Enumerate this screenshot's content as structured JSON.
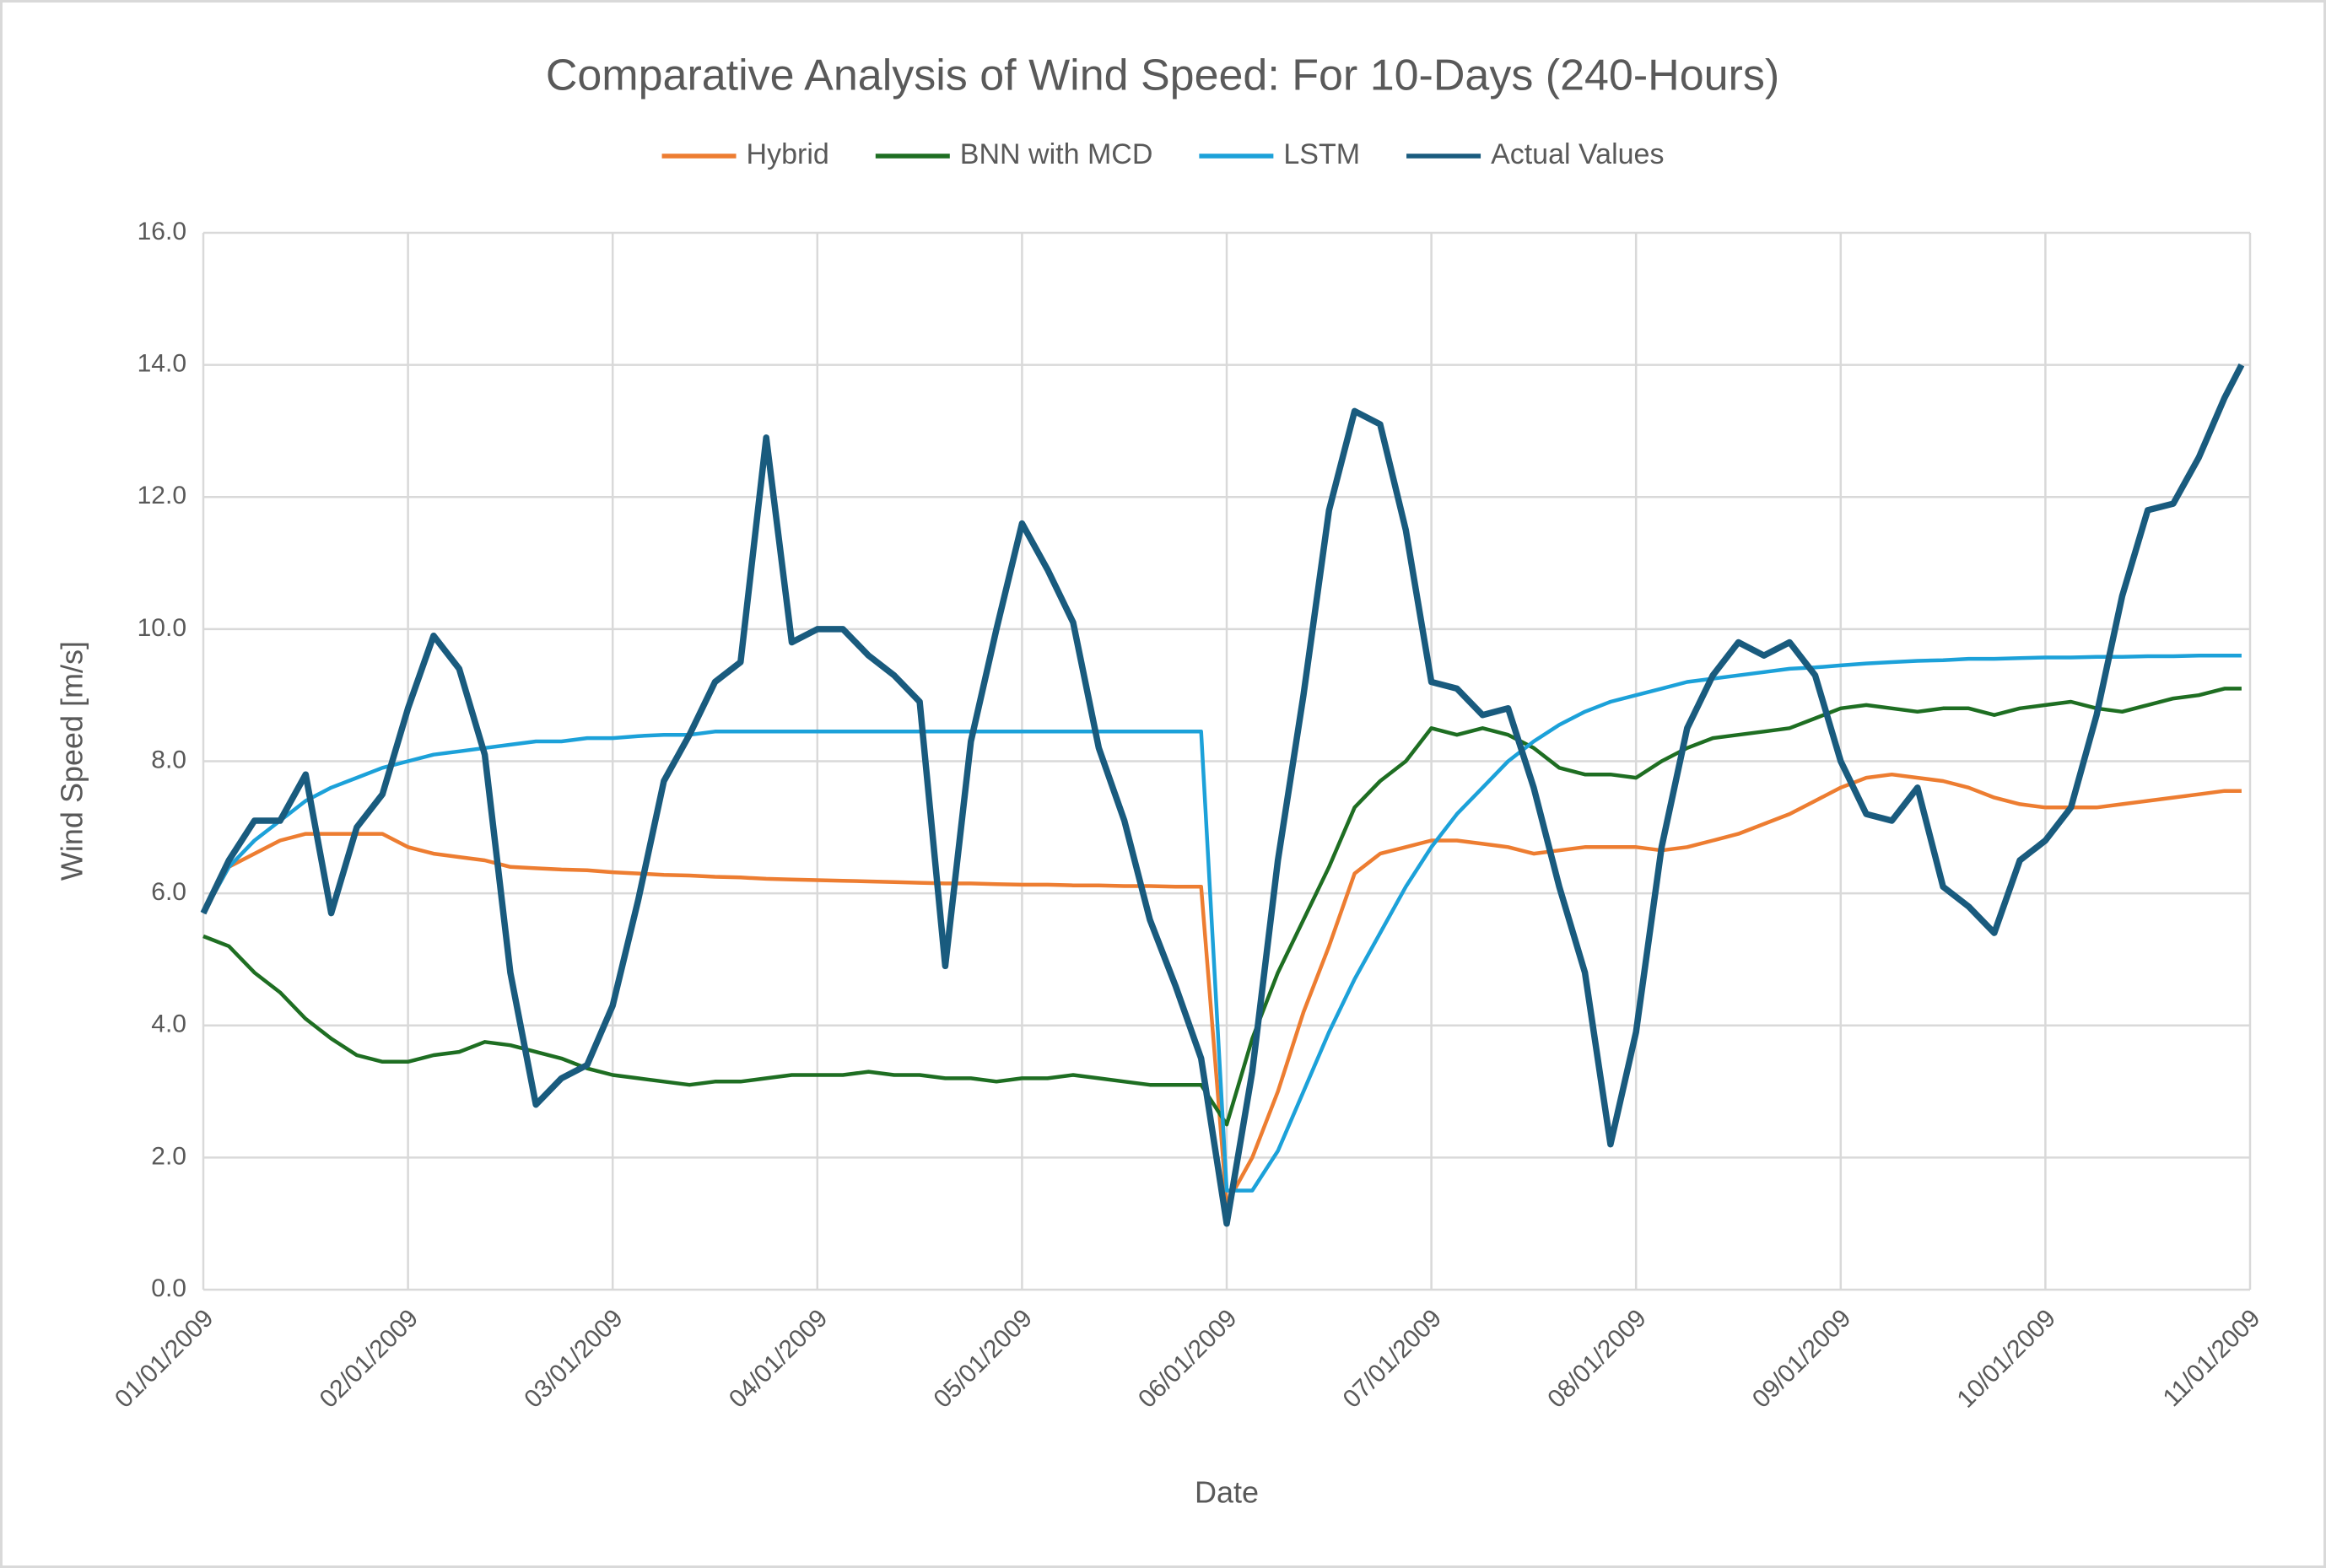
{
  "chart_data": {
    "type": "line",
    "title": "Comparative Analysis of Wind Speed: For 10-Days (240-Hours)",
    "x_label": "Date",
    "y_label": "Wind Speed [m/s]",
    "legend": "top",
    "grid": true,
    "xlim": [
      0,
      240
    ],
    "xticks": [
      {
        "value": 0,
        "label": "01/01/2009"
      },
      {
        "value": 24,
        "label": "02/01/2009"
      },
      {
        "value": 48,
        "label": "03/01/2009"
      },
      {
        "value": 72,
        "label": "04/01/2009"
      },
      {
        "value": 96,
        "label": "05/01/2009"
      },
      {
        "value": 120,
        "label": "06/01/2009"
      },
      {
        "value": 144,
        "label": "07/01/2009"
      },
      {
        "value": 168,
        "label": "08/01/2009"
      },
      {
        "value": 192,
        "label": "09/01/2009"
      },
      {
        "value": 216,
        "label": "10/01/2009"
      },
      {
        "value": 240,
        "label": "11/01/2009"
      }
    ],
    "ylim": [
      0,
      16
    ],
    "yticks": [
      {
        "value": 0,
        "label": "0.0"
      },
      {
        "value": 2,
        "label": "2.0"
      },
      {
        "value": 4,
        "label": "4.0"
      },
      {
        "value": 6,
        "label": "6.0"
      },
      {
        "value": 8,
        "label": "8.0"
      },
      {
        "value": 10,
        "label": "10.0"
      },
      {
        "value": 12,
        "label": "12.0"
      },
      {
        "value": 14,
        "label": "14.0"
      },
      {
        "value": 16,
        "label": "16.0"
      }
    ],
    "x": [
      0,
      3,
      6,
      9,
      12,
      15,
      18,
      21,
      24,
      27,
      30,
      33,
      36,
      39,
      42,
      45,
      48,
      51,
      54,
      57,
      60,
      63,
      66,
      69,
      72,
      75,
      78,
      81,
      84,
      87,
      90,
      93,
      96,
      99,
      102,
      105,
      108,
      111,
      114,
      117,
      120,
      123,
      126,
      129,
      132,
      135,
      138,
      141,
      144,
      147,
      150,
      153,
      156,
      159,
      162,
      165,
      168,
      171,
      174,
      177,
      180,
      183,
      186,
      189,
      192,
      195,
      198,
      201,
      204,
      207,
      210,
      213,
      216,
      219,
      222,
      225,
      228,
      231,
      234,
      237,
      239
    ],
    "series": [
      {
        "name": "Hybrid",
        "color": "#ED7D31",
        "width": 4.5,
        "values": [
          5.7,
          6.4,
          6.6,
          6.8,
          6.9,
          6.9,
          6.9,
          6.9,
          6.7,
          6.6,
          6.55,
          6.5,
          6.4,
          6.38,
          6.36,
          6.35,
          6.32,
          6.3,
          6.28,
          6.27,
          6.25,
          6.24,
          6.22,
          6.21,
          6.2,
          6.19,
          6.18,
          6.17,
          6.16,
          6.15,
          6.15,
          6.14,
          6.13,
          6.13,
          6.12,
          6.12,
          6.11,
          6.11,
          6.1,
          6.1,
          1.3,
          2.0,
          3.0,
          4.2,
          5.2,
          6.3,
          6.6,
          6.7,
          6.8,
          6.8,
          6.75,
          6.7,
          6.6,
          6.65,
          6.7,
          6.7,
          6.7,
          6.65,
          6.7,
          6.8,
          6.9,
          7.05,
          7.2,
          7.4,
          7.6,
          7.75,
          7.8,
          7.75,
          7.7,
          7.6,
          7.45,
          7.35,
          7.3,
          7.3,
          7.3,
          7.35,
          7.4,
          7.45,
          7.5,
          7.55,
          7.55
        ]
      },
      {
        "name": "BNN with MCD",
        "color": "#1E6E22",
        "width": 4.5,
        "values": [
          5.35,
          5.2,
          4.8,
          4.5,
          4.1,
          3.8,
          3.55,
          3.45,
          3.45,
          3.55,
          3.6,
          3.75,
          3.7,
          3.6,
          3.5,
          3.35,
          3.25,
          3.2,
          3.15,
          3.1,
          3.15,
          3.15,
          3.2,
          3.25,
          3.25,
          3.25,
          3.3,
          3.25,
          3.25,
          3.2,
          3.2,
          3.15,
          3.2,
          3.2,
          3.25,
          3.2,
          3.15,
          3.1,
          3.1,
          3.1,
          2.5,
          3.8,
          4.8,
          5.6,
          6.4,
          7.3,
          7.7,
          8.0,
          8.5,
          8.4,
          8.5,
          8.4,
          8.2,
          7.9,
          7.8,
          7.8,
          7.75,
          8.0,
          8.2,
          8.35,
          8.4,
          8.45,
          8.5,
          8.65,
          8.8,
          8.85,
          8.8,
          8.75,
          8.8,
          8.8,
          8.7,
          8.8,
          8.85,
          8.9,
          8.8,
          8.75,
          8.85,
          8.95,
          9.0,
          9.1,
          9.1
        ]
      },
      {
        "name": "LSTM",
        "color": "#1CA1D9",
        "width": 4.5,
        "values": [
          5.7,
          6.4,
          6.8,
          7.1,
          7.4,
          7.6,
          7.75,
          7.9,
          8.0,
          8.1,
          8.15,
          8.2,
          8.25,
          8.3,
          8.3,
          8.35,
          8.35,
          8.38,
          8.4,
          8.4,
          8.45,
          8.45,
          8.45,
          8.45,
          8.45,
          8.45,
          8.45,
          8.45,
          8.45,
          8.45,
          8.45,
          8.45,
          8.45,
          8.45,
          8.45,
          8.45,
          8.45,
          8.45,
          8.45,
          8.45,
          1.5,
          1.5,
          2.1,
          3.0,
          3.9,
          4.7,
          5.4,
          6.1,
          6.7,
          7.2,
          7.6,
          8.0,
          8.3,
          8.55,
          8.75,
          8.9,
          9.0,
          9.1,
          9.2,
          9.25,
          9.3,
          9.35,
          9.4,
          9.42,
          9.45,
          9.48,
          9.5,
          9.52,
          9.53,
          9.55,
          9.55,
          9.56,
          9.57,
          9.57,
          9.58,
          9.58,
          9.59,
          9.59,
          9.6,
          9.6,
          9.6
        ]
      },
      {
        "name": "Actual Values",
        "color": "#195B7E",
        "width": 7.5,
        "values": [
          5.7,
          6.5,
          7.1,
          7.1,
          7.8,
          5.7,
          7.0,
          7.5,
          8.8,
          9.9,
          9.4,
          8.1,
          4.8,
          2.8,
          3.2,
          3.4,
          4.3,
          5.9,
          7.7,
          8.4,
          9.2,
          9.5,
          12.9,
          9.8,
          10.0,
          10.0,
          9.6,
          9.3,
          8.9,
          4.9,
          8.3,
          10.0,
          11.6,
          10.9,
          10.1,
          8.2,
          7.1,
          5.6,
          4.6,
          3.5,
          1.0,
          3.3,
          6.5,
          9.0,
          11.8,
          13.3,
          13.1,
          11.5,
          9.2,
          9.1,
          8.7,
          8.8,
          7.6,
          6.1,
          4.8,
          2.2,
          3.9,
          6.7,
          8.5,
          9.3,
          9.8,
          9.6,
          9.8,
          9.3,
          8.0,
          7.2,
          7.1,
          7.6,
          6.1,
          5.8,
          5.4,
          6.5,
          6.8,
          7.3,
          8.7,
          10.5,
          11.8,
          11.9,
          12.6,
          13.5,
          14.0
        ]
      }
    ]
  }
}
